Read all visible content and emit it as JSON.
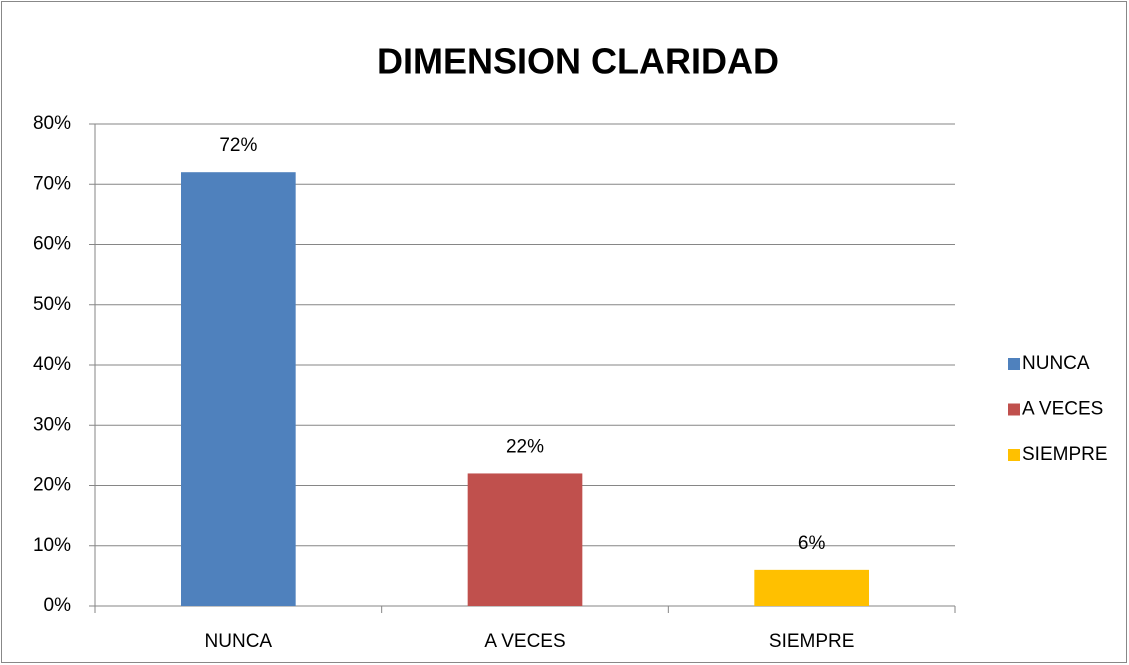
{
  "chart_data": {
    "type": "bar",
    "title": "DIMENSION CLARIDAD",
    "categories": [
      "NUNCA",
      "A VECES",
      "SIEMPRE"
    ],
    "values": [
      72,
      22,
      6
    ],
    "value_labels": [
      "72%",
      "22%",
      "6%"
    ],
    "colors": [
      "#4f81bd",
      "#c0504d",
      "#ffc000"
    ],
    "ylim": [
      0,
      80
    ],
    "yticks": [
      {
        "value": 0,
        "label": "0%"
      },
      {
        "value": 10,
        "label": "10%"
      },
      {
        "value": 20,
        "label": "20%"
      },
      {
        "value": 30,
        "label": "30%"
      },
      {
        "value": 40,
        "label": "40%"
      },
      {
        "value": 50,
        "label": "50%"
      },
      {
        "value": 60,
        "label": "60%"
      },
      {
        "value": 70,
        "label": "70%"
      },
      {
        "value": 80,
        "label": "80%"
      }
    ],
    "grid": true,
    "legend": "right"
  }
}
